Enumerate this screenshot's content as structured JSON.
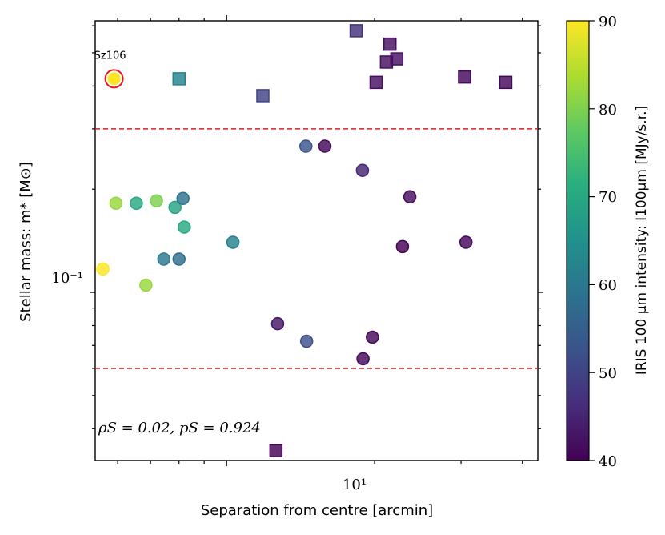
{
  "chart_data": {
    "type": "scatter",
    "xlabel": "Separation from centre [arcmin]",
    "ylabel": "Stellar mass: m* [M⊙]",
    "xscale": "log",
    "yscale": "log",
    "xlim": [
      5.4,
      43
    ],
    "ylim": [
      0.0323,
      0.62
    ],
    "grid": false,
    "x_tick_labels": [
      "10¹"
    ],
    "y_tick_labels": [
      "10⁻¹"
    ],
    "reference_lines": [
      {
        "y": 0.3,
        "style": "dashed",
        "color": "#e41a1c"
      },
      {
        "y": 0.06,
        "style": "dashed",
        "color": "#e41a1c"
      }
    ],
    "highlight": {
      "label": "Sz106",
      "x": 5.9,
      "y": 0.42,
      "intensity": 90,
      "marker": "circle",
      "ring_color": "#e41a1c"
    },
    "annotation": "ρS = 0.02, pS = 0.924",
    "colorbar": {
      "label": "IRIS 100 μm intensity: I100μm [MJy/s.r.]",
      "min": 40,
      "max": 90,
      "ticks": [
        "40",
        "50",
        "60",
        "70",
        "80",
        "90"
      ],
      "colormap": "viridis"
    },
    "series": [
      {
        "marker": "circle",
        "points": [
          {
            "x": 5.6,
            "y": 0.117,
            "c": 90
          },
          {
            "x": 5.95,
            "y": 0.182,
            "c": 82
          },
          {
            "x": 6.55,
            "y": 0.182,
            "c": 70
          },
          {
            "x": 7.2,
            "y": 0.185,
            "c": 80
          },
          {
            "x": 6.85,
            "y": 0.105,
            "c": 82
          },
          {
            "x": 7.45,
            "y": 0.125,
            "c": 60
          },
          {
            "x": 7.85,
            "y": 0.177,
            "c": 69
          },
          {
            "x": 8.0,
            "y": 0.125,
            "c": 58
          },
          {
            "x": 8.15,
            "y": 0.188,
            "c": 59
          },
          {
            "x": 8.2,
            "y": 0.155,
            "c": 70
          },
          {
            "x": 10.3,
            "y": 0.14,
            "c": 62
          },
          {
            "x": 12.7,
            "y": 0.081,
            "c": 43
          },
          {
            "x": 14.55,
            "y": 0.072,
            "c": 52
          },
          {
            "x": 14.5,
            "y": 0.267,
            "c": 53
          },
          {
            "x": 15.85,
            "y": 0.267,
            "c": 41
          },
          {
            "x": 18.9,
            "y": 0.227,
            "c": 45
          },
          {
            "x": 19.8,
            "y": 0.074,
            "c": 41
          },
          {
            "x": 18.95,
            "y": 0.064,
            "c": 41
          },
          {
            "x": 22.8,
            "y": 0.136,
            "c": 40
          },
          {
            "x": 23.6,
            "y": 0.19,
            "c": 42
          },
          {
            "x": 30.7,
            "y": 0.14,
            "c": 41
          }
        ]
      },
      {
        "marker": "square",
        "points": [
          {
            "x": 8.0,
            "y": 0.42,
            "c": 62
          },
          {
            "x": 11.85,
            "y": 0.375,
            "c": 50
          },
          {
            "x": 12.6,
            "y": 0.0345,
            "c": 40
          },
          {
            "x": 18.35,
            "y": 0.58,
            "c": 47
          },
          {
            "x": 20.15,
            "y": 0.41,
            "c": 42
          },
          {
            "x": 21.5,
            "y": 0.53,
            "c": 42
          },
          {
            "x": 21.15,
            "y": 0.47,
            "c": 42
          },
          {
            "x": 22.2,
            "y": 0.48,
            "c": 42
          },
          {
            "x": 30.5,
            "y": 0.425,
            "c": 41
          },
          {
            "x": 37.0,
            "y": 0.41,
            "c": 41
          }
        ]
      }
    ]
  }
}
